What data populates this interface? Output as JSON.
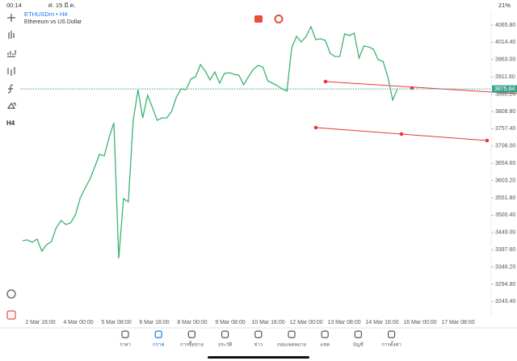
{
  "status_bar": {
    "time": "00:14",
    "date": "ศ. 15 มี.ค.",
    "battery": "21%"
  },
  "toolbar": {
    "timeframe": "H4"
  },
  "chart": {
    "symbol": "ETHUSDm • H4",
    "description": "Ethereum vs US Dollar",
    "color": "#3cb371",
    "ylim": [
      3203.5,
      4101.8
    ],
    "price_ticks": [
      {
        "value": 4065.8,
        "label": "4065.80"
      },
      {
        "value": 4014.4,
        "label": "4014.40"
      },
      {
        "value": 3963.0,
        "label": "3963.00"
      },
      {
        "value": 3911.6,
        "label": "3911.60"
      },
      {
        "value": 3860.2,
        "label": "3860.20"
      },
      {
        "value": 3808.8,
        "label": "3808.80"
      },
      {
        "value": 3757.4,
        "label": "3757.40"
      },
      {
        "value": 3706.0,
        "label": "3706.00"
      },
      {
        "value": 3654.6,
        "label": "3654.60"
      },
      {
        "value": 3603.2,
        "label": "3603.20"
      },
      {
        "value": 3551.8,
        "label": "3551.80"
      },
      {
        "value": 3500.4,
        "label": "3500.40"
      },
      {
        "value": 3449.0,
        "label": "3449.00"
      },
      {
        "value": 3397.6,
        "label": "3397.60"
      },
      {
        "value": 3346.2,
        "label": "3346.20"
      },
      {
        "value": 3294.8,
        "label": "3294.80"
      },
      {
        "value": 3243.4,
        "label": "3243.40"
      }
    ],
    "current_price": {
      "value": 3875.84,
      "label": "3875.84"
    },
    "time_labels": [
      "2 Mar 16:00",
      "4 Mar 00:00",
      "5 Mar 08:00",
      "6 Mar 16:00",
      "8 Mar 00:00",
      "9 Mar 08:00",
      "10 Mar 16:00",
      "12 Mar 00:00",
      "13 Mar 08:00",
      "14 Mar 16:00",
      "16 Mar 00:00",
      "17 Mar 08:00"
    ],
    "values": [
      3424.5,
      3426.9,
      3419.7,
      3429.3,
      3393.2,
      3412.5,
      3422.1,
      3462.9,
      3484.5,
      3472.5,
      3477.3,
      3501.3,
      3551.8,
      3580.6,
      3607.0,
      3643.0,
      3681.5,
      3676.7,
      3731.9,
      3775.2,
      3371.6,
      3549.4,
      3539.8,
      3780.0,
      3873.6,
      3789.6,
      3856.8,
      3820.8,
      3782.4,
      3789.6,
      3789.6,
      3808.8,
      3852.0,
      3876.0,
      3873.6,
      3904.9,
      3912.1,
      3948.1,
      3928.9,
      3902.5,
      3926.5,
      3892.9,
      3921.7,
      3924.1,
      3919.3,
      3916.9,
      3888.1,
      3912.1,
      3933.7,
      3945.7,
      3940.9,
      3900.1,
      3892.9,
      3885.6,
      3876.0,
      3868.8,
      3998.5,
      4032.2,
      4015.4,
      4032.2,
      4061.0,
      4022.6,
      4025.0,
      4020.2,
      3981.7,
      3972.1,
      3972.1,
      4039.4,
      4034.6,
      4041.8,
      3967.3,
      4003.3,
      4000.9,
      3993.7,
      3962.5,
      3957.7,
      3912.1,
      3842.4,
      3876.0
    ]
  },
  "nav": [
    "ราคา",
    "กราฟ",
    "การซื้อขาย",
    "ประวัติ",
    "ข่าว",
    "กล่องจดหมาย",
    "แชท",
    "บัญชี",
    "การตั้งค่า"
  ]
}
